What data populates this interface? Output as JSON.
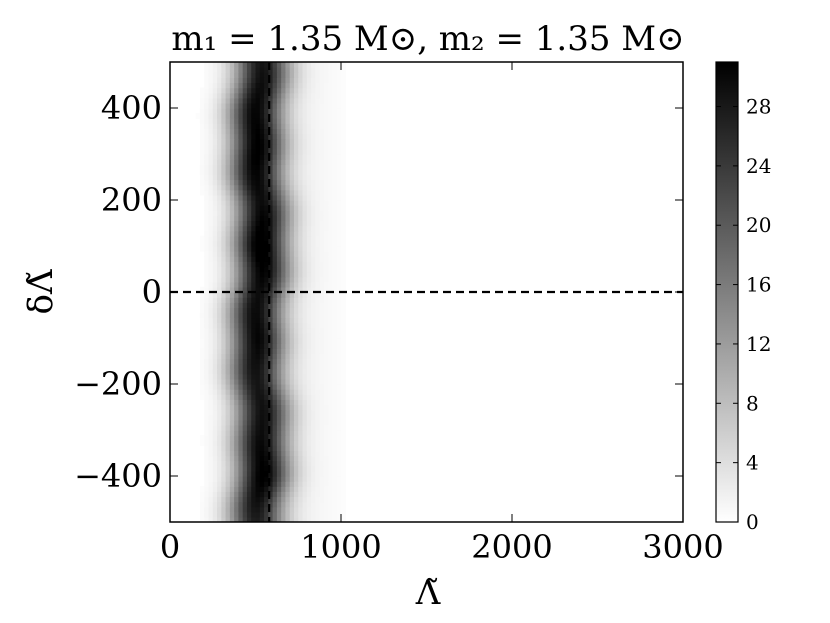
{
  "chart_data": {
    "type": "heatmap",
    "title": "m₁ = 1.35 M⊙,  m₂ = 1.35 M⊙",
    "xlabel": "Λ̃",
    "ylabel": "δΛ̃",
    "xlim": [
      0,
      3000
    ],
    "ylim": [
      -500,
      500
    ],
    "x_ticks": [
      "0",
      "1000",
      "2000",
      "3000"
    ],
    "y_ticks": [
      "−400",
      "−200",
      "0",
      "200",
      "400"
    ],
    "x_tick_values": [
      0,
      1000,
      2000,
      3000
    ],
    "y_tick_values": [
      -400,
      -200,
      0,
      200,
      400
    ],
    "colorbar": {
      "range": [
        0,
        31
      ],
      "ticks": [
        "0",
        "4",
        "8",
        "12",
        "16",
        "20",
        "24",
        "28"
      ],
      "tick_values": [
        0,
        4,
        8,
        12,
        16,
        20,
        24,
        28
      ],
      "colormap": "gray_r"
    },
    "reference_lines": {
      "vertical_x": 580,
      "horizontal_y": 0,
      "style": "dashed",
      "color": "#000000"
    },
    "density_ridge": {
      "center_x": 520,
      "sigma_x": 110,
      "peak_value": 31,
      "y_profile": [
        {
          "y": -500,
          "peak": 26
        },
        {
          "y": -400,
          "peak": 30
        },
        {
          "y": -300,
          "peak": 28
        },
        {
          "y": -200,
          "peak": 27
        },
        {
          "y": -100,
          "peak": 29
        },
        {
          "y": 0,
          "peak": 28
        },
        {
          "y": 100,
          "peak": 31
        },
        {
          "y": 200,
          "peak": 28
        },
        {
          "y": 300,
          "peak": 30
        },
        {
          "y": 400,
          "peak": 29
        },
        {
          "y": 500,
          "peak": 27
        }
      ]
    }
  }
}
